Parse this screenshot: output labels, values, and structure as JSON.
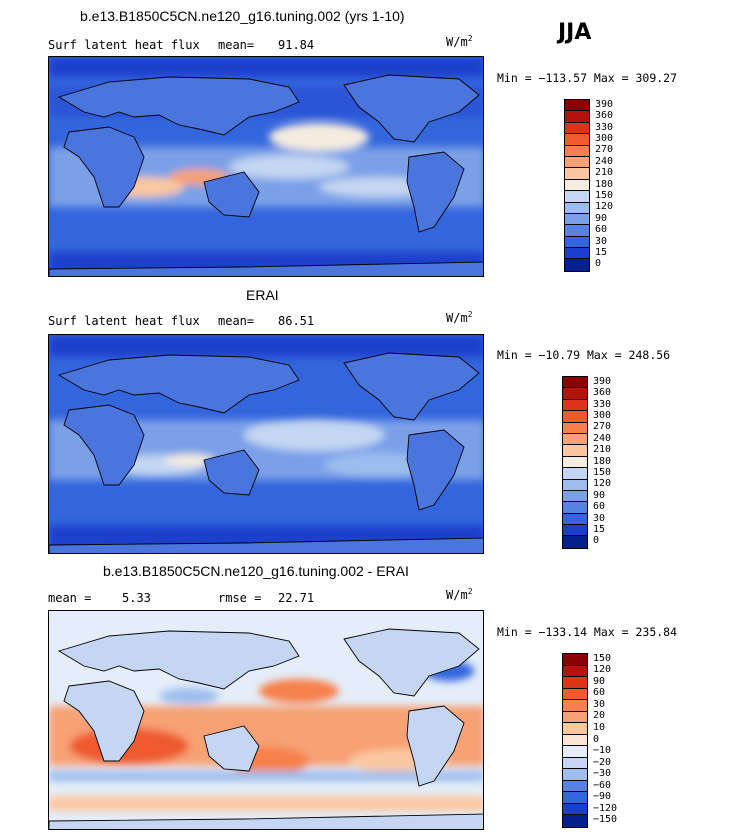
{
  "season": "JJA",
  "panels": [
    {
      "title": "b.e13.B1850C5CN.ne120_g16.tuning.002 (yrs 1-10)",
      "variable": "Surf latent heat flux",
      "stat1_label": "mean=",
      "stat1_value": "91.84",
      "units": "W/m",
      "units_exp": "2",
      "minmax": "Min = −113.57 Max = 309.27",
      "colorbar_labels": [
        "390",
        "360",
        "330",
        "300",
        "270",
        "240",
        "210",
        "180",
        "150",
        "120",
        "90",
        "60",
        "30",
        "15",
        "0"
      ],
      "colorbar_colors": [
        "#8b0000",
        "#b5140c",
        "#dc3418",
        "#ef5a2e",
        "#f7804c",
        "#f7a174",
        "#fbc7a0",
        "#f4ecdf",
        "#c4d6f2",
        "#9cbdee",
        "#7aa0e8",
        "#5882e2",
        "#3366dd",
        "#1a3fcc",
        "#051f8c"
      ]
    },
    {
      "title": "ERAI",
      "variable": "Surf latent heat flux",
      "stat1_label": "mean=",
      "stat1_value": "86.51",
      "units": "W/m",
      "units_exp": "2",
      "minmax": "Min = −10.79 Max = 248.56",
      "colorbar_labels": [
        "390",
        "360",
        "330",
        "300",
        "270",
        "240",
        "210",
        "180",
        "150",
        "120",
        "90",
        "60",
        "30",
        "15",
        "0"
      ],
      "colorbar_colors": [
        "#8b0000",
        "#b5140c",
        "#dc3418",
        "#ef5a2e",
        "#f7804c",
        "#f7a174",
        "#fbc7a0",
        "#f4ecdf",
        "#c4d6f2",
        "#9cbdee",
        "#7aa0e8",
        "#5882e2",
        "#3366dd",
        "#1a3fcc",
        "#051f8c"
      ]
    },
    {
      "title": "b.e13.B1850C5CN.ne120_g16.tuning.002 - ERAI",
      "stat1_label": "mean =",
      "stat1_value": "5.33",
      "stat2_label": "rmse =",
      "stat2_value": "22.71",
      "units": "W/m",
      "units_exp": "2",
      "minmax": "Min = −133.14 Max = 235.84",
      "colorbar_labels": [
        "150",
        "120",
        "90",
        "60",
        "30",
        "20",
        "10",
        "0",
        "−10",
        "−20",
        "−30",
        "−60",
        "−90",
        "−120",
        "−150"
      ],
      "colorbar_colors": [
        "#8b0000",
        "#b5140c",
        "#dc3418",
        "#ef5a2e",
        "#f7804c",
        "#f7a174",
        "#fbc7a0",
        "#fbe4d4",
        "#e4edf9",
        "#c4d6f2",
        "#9cbdee",
        "#5882e2",
        "#3366dd",
        "#1a3fcc",
        "#051f8c"
      ]
    }
  ]
}
